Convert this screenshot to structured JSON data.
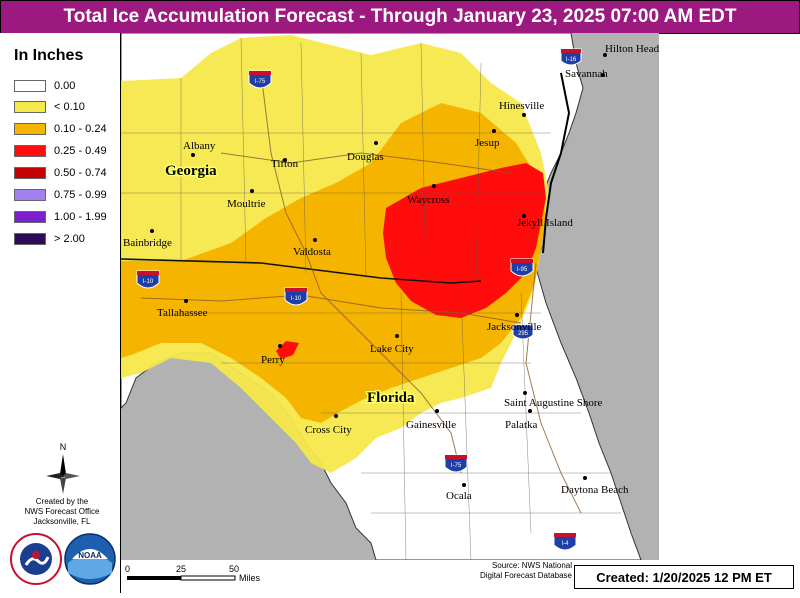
{
  "title": "Total Ice Accumulation Forecast - Through January 23, 2025 07:00 AM EDT",
  "legend": {
    "title": "In Inches",
    "items": [
      {
        "label": "0.00",
        "color": "#ffffff"
      },
      {
        "label": "< 0.10",
        "color": "#f5e84a"
      },
      {
        "label": "0.10 - 0.24",
        "color": "#f5b400"
      },
      {
        "label": "0.25 - 0.49",
        "color": "#ff0d0d"
      },
      {
        "label": "0.50 - 0.74",
        "color": "#c40000"
      },
      {
        "label": "0.75 - 0.99",
        "color": "#a37ff0"
      },
      {
        "label": "1.00 - 1.99",
        "color": "#7b1fd1"
      },
      {
        "label": "> 2.00",
        "color": "#2d0b56"
      }
    ]
  },
  "credit": {
    "line1": "Created by the",
    "line2": "NWS Forecast Office",
    "line3": "Jacksonville, FL"
  },
  "compass": {
    "label": "N"
  },
  "logos": {
    "nws": "NATIONAL WEATHER SERVICE",
    "noaa": "NOAA"
  },
  "cities": {
    "hilton_head": "Hilton Head Island",
    "savannah": "Savannah",
    "hinesville": "Hinesville",
    "albany": "Albany",
    "tifton": "Tifton",
    "douglas": "Douglas",
    "jesup": "Jesup",
    "moultrie": "Moultrie",
    "waycross": "Waycross",
    "jekyll": "Jekyll Island",
    "bainbridge": "Bainbridge",
    "valdosta": "Valdosta",
    "tallahassee": "Tallahassee",
    "jacksonville": "Jacksonville",
    "perry": "Perry",
    "lake_city": "Lake City",
    "st_augustine": "Saint Augustine Shore",
    "cross_city": "Cross City",
    "gainesville": "Gainesville",
    "palatka": "Palatka",
    "ocala": "Ocala",
    "daytona": "Daytona Beach"
  },
  "states": {
    "georgia": "Georgia",
    "florida": "Florida"
  },
  "highways": {
    "i75": "I-75",
    "i16": "I-16",
    "i10": "I-10",
    "i95": "I-95",
    "i295": "295",
    "i4": "I-4"
  },
  "scale": {
    "t0": "0",
    "t25": "25",
    "t50": "50",
    "unit": "Miles"
  },
  "source": {
    "line1": "Source: NWS National",
    "line2": "Digital Forecast Database"
  },
  "created": "Created:  1/20/2025 12 PM ET",
  "colors": {
    "title_bg": "#9c1a7f",
    "water": "#b2b2b2",
    "land": "#ffffff"
  }
}
